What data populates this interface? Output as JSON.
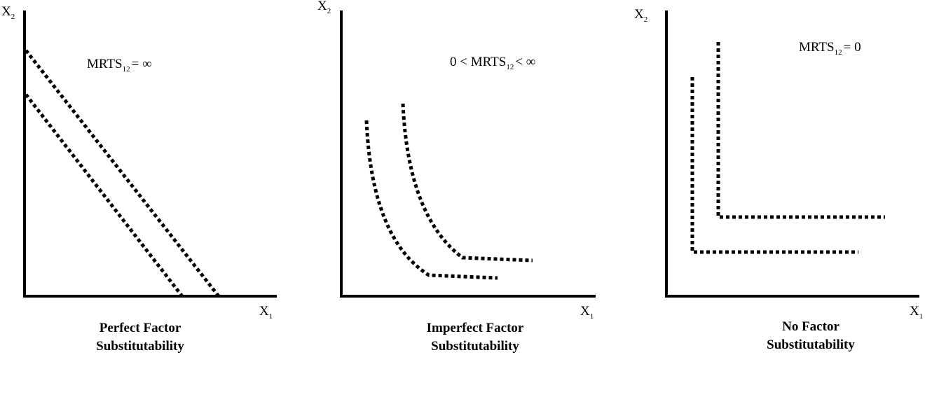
{
  "panels": [
    {
      "y_axis_label": {
        "base": "X",
        "sub": "2"
      },
      "x_axis_label": {
        "base": "X",
        "sub": "1"
      },
      "annotation": {
        "before": "MRTS",
        "sub": "12",
        "after": "= ∞"
      },
      "caption": [
        "Perfect Factor",
        "Substitutability"
      ]
    },
    {
      "y_axis_label": {
        "base": "X",
        "sub": "2"
      },
      "x_axis_label": {
        "base": "X",
        "sub": "1"
      },
      "annotation": {
        "before": "0 < MRTS",
        "sub": "12",
        "after": "< ∞"
      },
      "caption": [
        "Imperfect Factor",
        "Substitutability"
      ]
    },
    {
      "y_axis_label": {
        "base": "X",
        "sub": "2"
      },
      "x_axis_label": {
        "base": "X",
        "sub": "1"
      },
      "annotation": {
        "before": "MRTS",
        "sub": "12",
        "after": "= 0"
      },
      "caption": [
        "No Factor",
        "Substitutability"
      ]
    }
  ]
}
